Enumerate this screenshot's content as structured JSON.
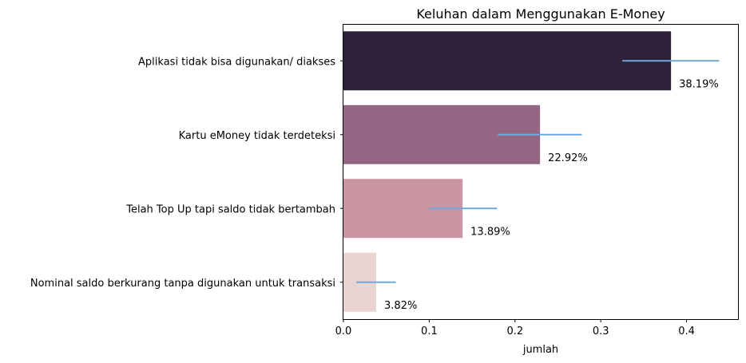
{
  "chart_data": {
    "type": "bar",
    "orientation": "horizontal",
    "title": "Keluhan dalam Menggunakan E-Money",
    "xlabel": "jumlah",
    "ylabel": "",
    "xlim": [
      0,
      0.46
    ],
    "xticks": [
      0.0,
      0.1,
      0.2,
      0.3,
      0.4
    ],
    "xtick_labels": [
      "0.0",
      "0.1",
      "0.2",
      "0.3",
      "0.4"
    ],
    "grid": false,
    "categories": [
      "Aplikasi tidak bisa digunakan/ diakses",
      "Kartu eMoney tidak terdeteksi",
      "Telah Top Up tapi saldo tidak bertambah",
      "Nominal saldo berkurang tanpa digunakan untuk transaksi"
    ],
    "values": [
      0.3819,
      0.2292,
      0.1389,
      0.0382
    ],
    "data_labels": [
      "38.19%",
      "22.92%",
      "13.89%",
      "3.82%"
    ],
    "error_bars": [
      [
        0.325,
        0.438
      ],
      [
        0.18,
        0.278
      ],
      [
        0.1,
        0.179
      ],
      [
        0.015,
        0.061
      ]
    ],
    "colors": [
      "#2e2139",
      "#956683",
      "#c995a3",
      "#e9d4d1"
    ],
    "error_color": "#6fa8dc"
  }
}
